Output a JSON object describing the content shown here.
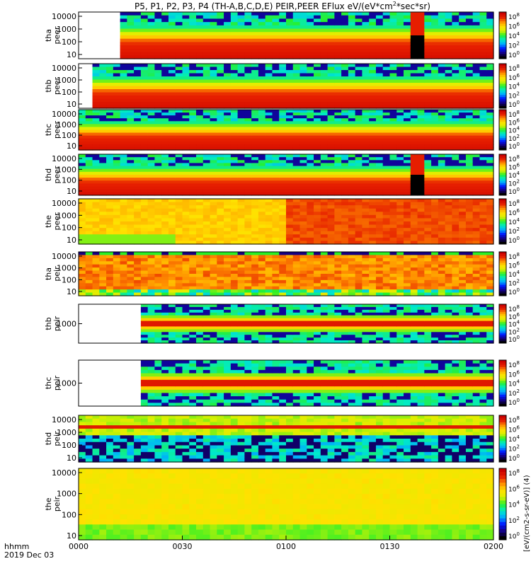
{
  "chart_data": {
    "type": "heatmap",
    "title_main": "P5, P1, P2, P3, P4 (TH-A,B,C,D,E) PEIR,PEER EFlux eV/(eV*cm",
    "title_sup": "2",
    "title_tail": "*sec*sr)",
    "x_ticks": [
      "0000",
      "0030",
      "0100",
      "0130",
      "0200"
    ],
    "x_unit": "hhmm",
    "date": "2019 Dec 03",
    "colorbar_label": "[eV/(cm2-s-sr-eV)] (4)",
    "colorbar_ticks": [
      {
        "base": "10",
        "exp": "8"
      },
      {
        "base": "10",
        "exp": "6"
      },
      {
        "base": "10",
        "exp": "4"
      },
      {
        "base": "10",
        "exp": "2"
      },
      {
        "base": "10",
        "exp": "0"
      }
    ],
    "panels": [
      {
        "label_top": "tha",
        "label_bot": "peer",
        "yticks": [
          "10000",
          "1000",
          "100",
          "10"
        ],
        "start": 0.09,
        "profile": "electron",
        "gap": [
          0.8,
          0.825
        ]
      },
      {
        "label_top": "thb",
        "label_bot": "peer",
        "yticks": [
          "10000",
          "1000",
          "100",
          "10"
        ],
        "start": 0.02,
        "profile": "electron_b"
      },
      {
        "label_top": "thc",
        "label_bot": "peer",
        "yticks": [
          "10000",
          "1000",
          "100",
          "10"
        ],
        "start": 0.0,
        "profile": "electron"
      },
      {
        "label_top": "thd",
        "label_bot": "peer",
        "yticks": [
          "10000",
          "1000",
          "100",
          "10"
        ],
        "start": 0.0,
        "profile": "electron",
        "gap": [
          0.8,
          0.825
        ]
      },
      {
        "label_top": "the",
        "label_bot": "peer",
        "yticks": [
          "10000",
          "1000",
          "100",
          "10"
        ],
        "start": 0.0,
        "profile": "hot"
      },
      {
        "label_top": "tha",
        "label_bot": "peir",
        "yticks": [
          "10000",
          "1000",
          "100",
          "10"
        ],
        "start": 0.0,
        "profile": "ion_a"
      },
      {
        "label_top": "thb",
        "label_bot": "peir",
        "yticks": [
          "1000"
        ],
        "start": 0.14,
        "profile": "ion_band"
      },
      {
        "label_top": "thc",
        "label_bot": "peir",
        "yticks": [
          "1000"
        ],
        "start": 0.14,
        "profile": "ion_band"
      },
      {
        "label_top": "thd",
        "label_bot": "peir",
        "yticks": [
          "10000",
          "1000",
          "100",
          "10"
        ],
        "start": 0.0,
        "profile": "ion_d"
      },
      {
        "label_top": "the",
        "label_bot": "peir",
        "yticks": [
          "10000",
          "1000",
          "100",
          "10"
        ],
        "start": 0.0,
        "profile": "ion_e"
      }
    ]
  }
}
